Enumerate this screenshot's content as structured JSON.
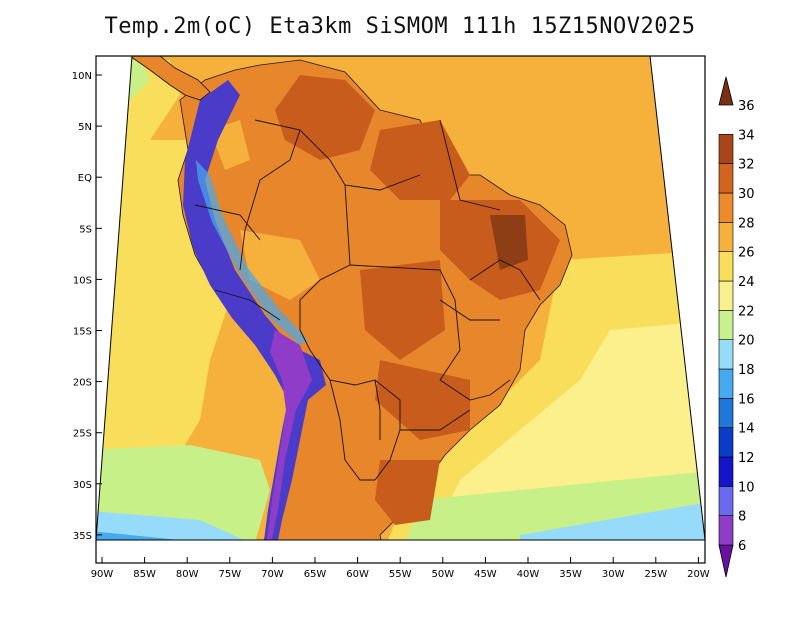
{
  "title": "Temp.2m(oC) Eta3km SiSMOM 111h 15Z15NOV2025",
  "map": {
    "latitude_labels": [
      "10N",
      "5N",
      "EQ",
      "5S",
      "10S",
      "15S",
      "20S",
      "25S",
      "30S",
      "35S"
    ],
    "longitude_labels": [
      "90W",
      "85W",
      "80W",
      "75W",
      "70W",
      "65W",
      "60W",
      "55W",
      "50W",
      "45W",
      "40W",
      "35W",
      "30W",
      "25W",
      "20W"
    ],
    "colors": {
      "ocean_warm": "#f6b03c",
      "ocean_mild": "#f8de5a",
      "ocean_cool": "#fbf08c",
      "ocean_cold": "#c8f088",
      "land_warm": "#e8862c",
      "land_hot": "#c85c1c",
      "land_very_hot": "#8e3e14",
      "andes_cold": "#4a3cc8",
      "border": "#000000"
    }
  },
  "colorbar": {
    "ticks": [
      "6",
      "8",
      "10",
      "12",
      "14",
      "16",
      "18",
      "20",
      "22",
      "24",
      "26",
      "28",
      "30",
      "32",
      "34",
      "36"
    ],
    "colors": [
      "#6a10a0",
      "#8f3cc8",
      "#6a6af0",
      "#1414c8",
      "#0a3cc8",
      "#1e78dc",
      "#46aaf0",
      "#96dcfa",
      "#c8f08c",
      "#f8f08c",
      "#f8de5a",
      "#f6b03c",
      "#ec8a2c",
      "#d2641e",
      "#a8461a",
      "#7a2e12"
    ]
  }
}
